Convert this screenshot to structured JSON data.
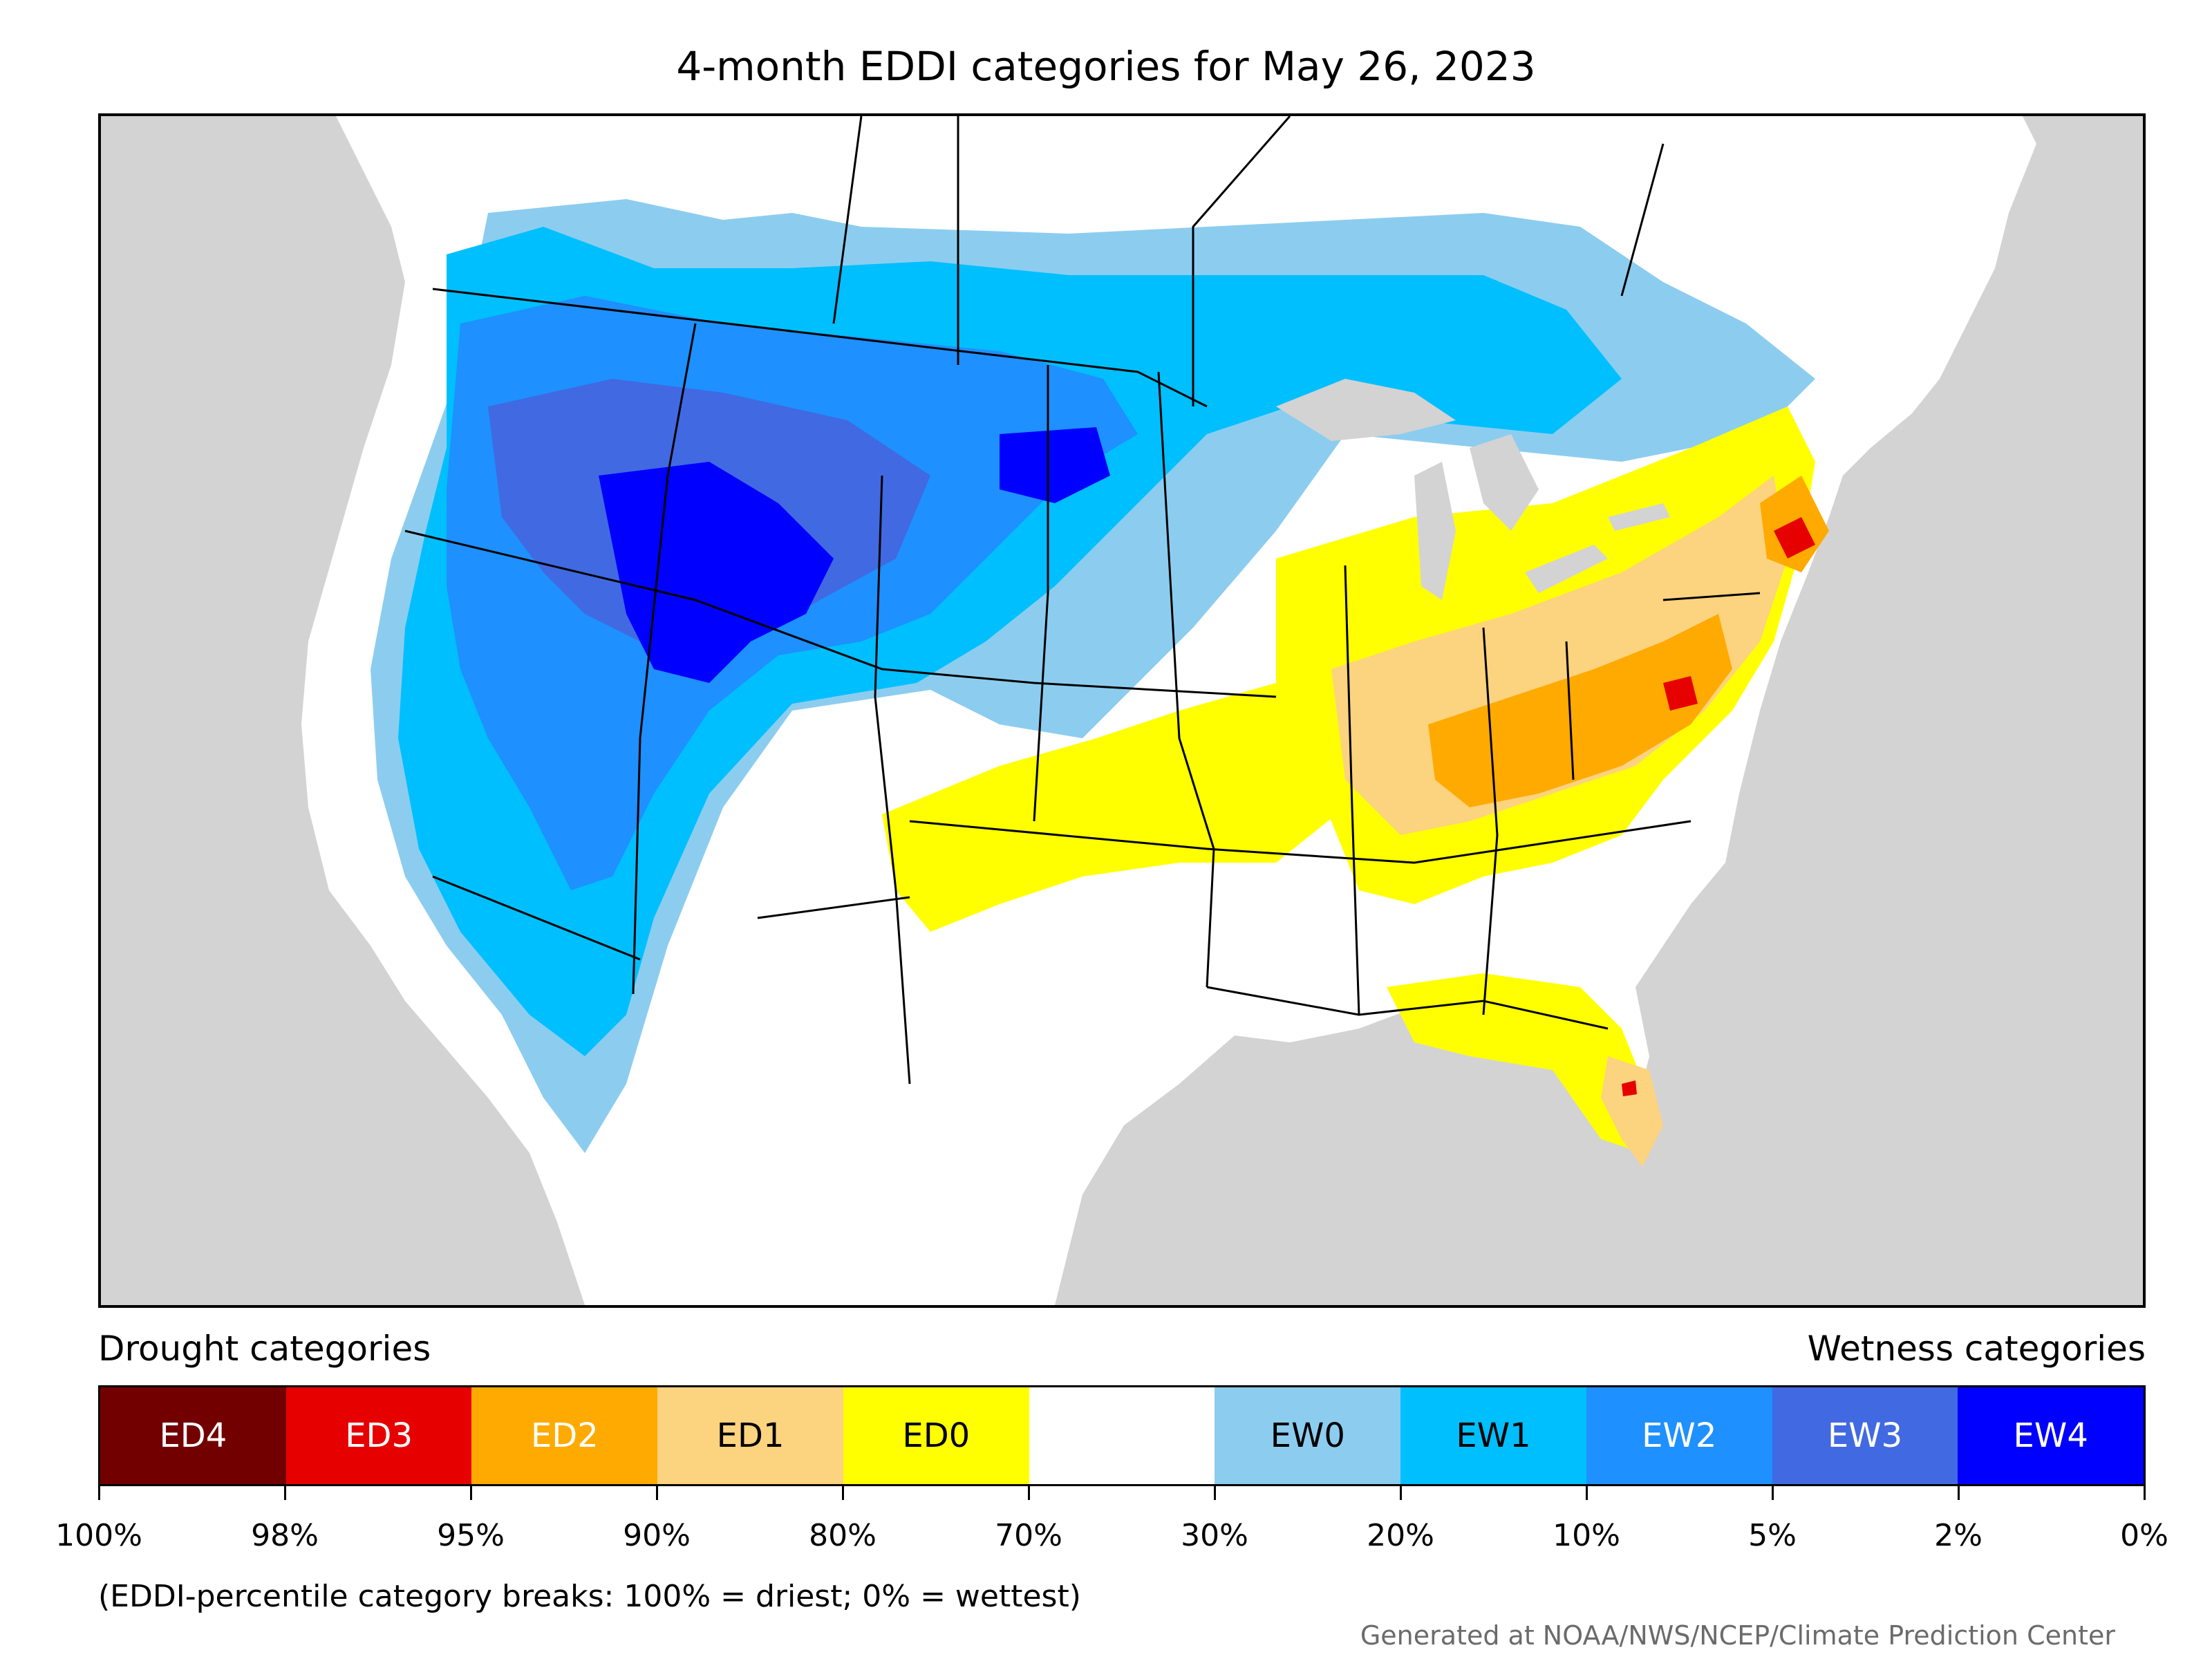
{
  "title": "4-month EDDI categories for May 26, 2023",
  "legend": {
    "left_heading": "Drought categories",
    "right_heading": "Wetness categories",
    "categories": [
      {
        "label": "ED4",
        "color": "#730000",
        "text_color": "#ffffff"
      },
      {
        "label": "ED3",
        "color": "#e60000",
        "text_color": "#ffffff"
      },
      {
        "label": "ED2",
        "color": "#ffaa00",
        "text_color": "#ffffff"
      },
      {
        "label": "ED1",
        "color": "#fcd37f",
        "text_color": "#000000"
      },
      {
        "label": "ED0",
        "color": "#ffff00",
        "text_color": "#000000"
      },
      {
        "label": "",
        "color": "#ffffff",
        "text_color": "#000000"
      },
      {
        "label": "EW0",
        "color": "#8ccdef",
        "text_color": "#000000"
      },
      {
        "label": "EW1",
        "color": "#00bfff",
        "text_color": "#000000"
      },
      {
        "label": "EW2",
        "color": "#1e90ff",
        "text_color": "#ffffff"
      },
      {
        "label": "EW3",
        "color": "#4169e1",
        "text_color": "#ffffff"
      },
      {
        "label": "EW4",
        "color": "#0000ff",
        "text_color": "#ffffff"
      }
    ],
    "ticks": [
      "100%",
      "98%",
      "95%",
      "90%",
      "80%",
      "70%",
      "30%",
      "20%",
      "10%",
      "5%",
      "2%",
      "0%"
    ]
  },
  "note": "(EDDI-percentile category breaks: 100% = driest; 0% = wettest)",
  "credit": "Generated at NOAA/NWS/NCEP/Climate Prediction Center",
  "map_colors": {
    "background": "#d3d3d3",
    "land": "#ffffff",
    "lakes": "#d3d3d3"
  }
}
